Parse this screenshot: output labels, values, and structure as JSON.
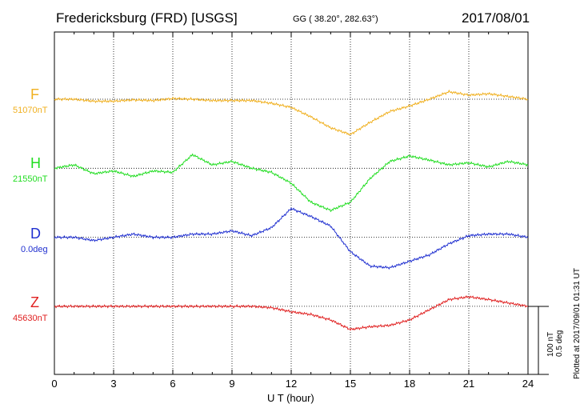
{
  "header": {
    "station": "Fredericksburg (FRD)  [USGS]",
    "coords": "GG ( 38.20°, 282.63°)",
    "date": "2017/08/01"
  },
  "footer": {
    "plotted_note": "Plotted at 2017/09/01 01:31  UT"
  },
  "chart_data": {
    "type": "line",
    "xlabel": "U T (hour)",
    "xlim": [
      0,
      24
    ],
    "x_ticks": [
      0,
      3,
      6,
      9,
      12,
      15,
      18,
      21,
      24
    ],
    "grid": true,
    "scale_bar": {
      "line1": "100 nT",
      "line2": "0.5 deg"
    },
    "series": [
      {
        "name": "F",
        "baseline_label": "51070nT",
        "color": "#f0b020",
        "offset_rows": 0,
        "x": [
          0,
          1,
          2,
          3,
          4,
          5,
          6,
          7,
          8,
          9,
          10,
          11,
          12,
          13,
          14,
          15,
          16,
          17,
          18,
          19,
          20,
          21,
          22,
          23,
          24
        ],
        "values": [
          0,
          0,
          -3,
          -3,
          -1,
          -2,
          1,
          0,
          -2,
          -2,
          -2,
          -6,
          -12,
          -26,
          -42,
          -52,
          -34,
          -18,
          -10,
          0,
          11,
          6,
          8,
          4,
          0
        ]
      },
      {
        "name": "H",
        "baseline_label": "21550nT",
        "color": "#22dd22",
        "offset_rows": 1,
        "x": [
          0,
          1,
          2,
          3,
          4,
          5,
          6,
          7,
          8,
          9,
          10,
          11,
          12,
          13,
          14,
          15,
          16,
          17,
          18,
          19,
          20,
          21,
          22,
          23,
          24
        ],
        "values": [
          0,
          5,
          -8,
          -4,
          -12,
          -4,
          -6,
          20,
          5,
          10,
          0,
          -6,
          -22,
          -50,
          -62,
          -50,
          -15,
          10,
          18,
          12,
          5,
          8,
          2,
          10,
          5
        ]
      },
      {
        "name": "D",
        "baseline_label": "0.0deg",
        "color": "#2030d0",
        "offset_rows": 2,
        "x": [
          0,
          1,
          2,
          3,
          4,
          5,
          6,
          7,
          8,
          9,
          10,
          11,
          12,
          13,
          14,
          15,
          16,
          17,
          18,
          19,
          20,
          21,
          22,
          23,
          24
        ],
        "values": [
          0,
          0,
          -0.04,
          0,
          0.04,
          0,
          0,
          0.04,
          0.04,
          0.08,
          0.02,
          0.12,
          0.36,
          0.26,
          0.14,
          -0.18,
          -0.36,
          -0.38,
          -0.3,
          -0.22,
          -0.08,
          0.02,
          0.04,
          0.04,
          0
        ]
      },
      {
        "name": "Z",
        "baseline_label": "45630nT",
        "color": "#e02020",
        "offset_rows": 3,
        "x": [
          0,
          1,
          2,
          3,
          4,
          5,
          6,
          7,
          8,
          9,
          10,
          11,
          12,
          13,
          14,
          15,
          16,
          17,
          18,
          19,
          20,
          21,
          22,
          23,
          24
        ],
        "values": [
          0,
          0,
          0,
          0,
          0,
          0,
          0,
          0,
          0,
          0,
          0,
          -2,
          -8,
          -12,
          -20,
          -34,
          -30,
          -28,
          -20,
          -5,
          10,
          14,
          10,
          5,
          0
        ]
      }
    ]
  }
}
